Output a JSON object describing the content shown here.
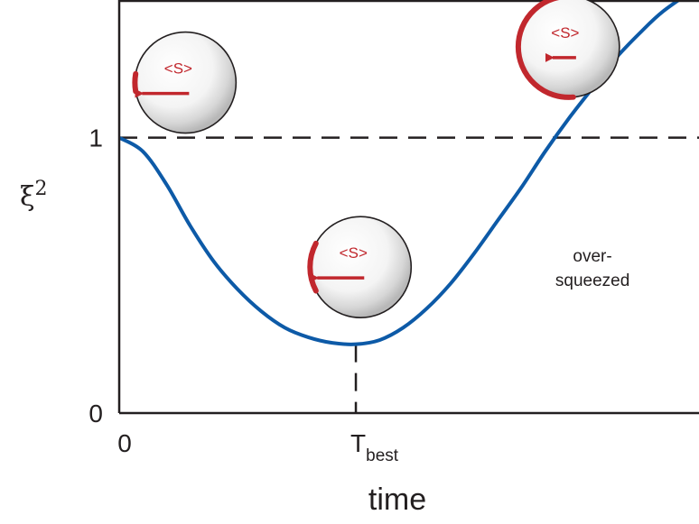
{
  "chart_data": {
    "type": "line",
    "title": "",
    "xlabel": "time",
    "ylabel": "ξ",
    "ylabel_superscript": "2",
    "xlim": [
      0,
      2.45
    ],
    "ylim": [
      0,
      1.5
    ],
    "x_ticks": [
      {
        "value": 0,
        "label": "0"
      },
      {
        "value": 1,
        "label": "T",
        "subscript": "best"
      }
    ],
    "y_ticks": [
      {
        "value": 0,
        "label": "0"
      },
      {
        "value": 1,
        "label": "1"
      }
    ],
    "reference_lines": [
      {
        "orientation": "horizontal",
        "y": 1,
        "style": "dashed"
      },
      {
        "orientation": "vertical",
        "x": 1,
        "y_from": 0,
        "y_to": 0.25,
        "style": "dashed"
      }
    ],
    "series": [
      {
        "color": "#0d5aa7",
        "points": [
          [
            0.0,
            1.0
          ],
          [
            0.1,
            0.95
          ],
          [
            0.2,
            0.83
          ],
          [
            0.3,
            0.68
          ],
          [
            0.4,
            0.55
          ],
          [
            0.5,
            0.45
          ],
          [
            0.6,
            0.37
          ],
          [
            0.7,
            0.31
          ],
          [
            0.8,
            0.275
          ],
          [
            0.9,
            0.255
          ],
          [
            1.0,
            0.25
          ],
          [
            1.1,
            0.265
          ],
          [
            1.2,
            0.31
          ],
          [
            1.3,
            0.38
          ],
          [
            1.4,
            0.47
          ],
          [
            1.5,
            0.58
          ],
          [
            1.6,
            0.7
          ],
          [
            1.7,
            0.82
          ],
          [
            1.8,
            0.95
          ],
          [
            1.9,
            1.07
          ],
          [
            2.0,
            1.18
          ],
          [
            2.1,
            1.29
          ],
          [
            2.2,
            1.38
          ],
          [
            2.3,
            1.46
          ],
          [
            2.45,
            1.55
          ]
        ]
      }
    ],
    "annotations": [
      {
        "text_lines": [
          "over-",
          "squeezed"
        ],
        "x": 2.0,
        "y": 0.55
      }
    ],
    "spheres": [
      {
        "label": "<S>",
        "x": 0.28,
        "y": 1.2,
        "arc": "small"
      },
      {
        "label": "<S>",
        "x": 1.02,
        "y": 0.53,
        "arc": "medium"
      },
      {
        "label": "<S>",
        "x": 1.9,
        "y": 1.33,
        "arc": "large"
      }
    ],
    "grid": false,
    "legend": "none",
    "colors": {
      "axis": "#231f20",
      "curve": "#0d5aa7",
      "accent": "#c1272d"
    }
  }
}
